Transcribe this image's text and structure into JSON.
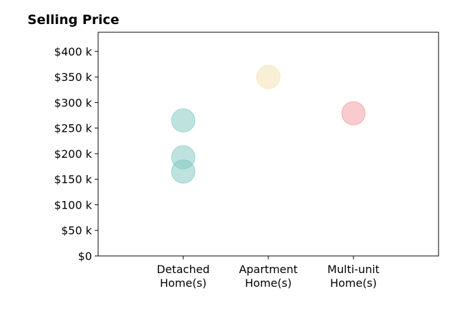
{
  "chart_data": {
    "type": "scatter",
    "title": "Selling Price",
    "xlabel": "",
    "ylabel": "",
    "categories": [
      [
        "Detached",
        "Home(s)"
      ],
      [
        "Apartment",
        "Home(s)"
      ],
      [
        "Multi-unit",
        "Home(s)"
      ]
    ],
    "y_ticks": [
      {
        "value": 0,
        "label": "$0"
      },
      {
        "value": 50000,
        "label": "$50 k"
      },
      {
        "value": 100000,
        "label": "$100 k"
      },
      {
        "value": 150000,
        "label": "$150 k"
      },
      {
        "value": 200000,
        "label": "$200 k"
      },
      {
        "value": 250000,
        "label": "$250 k"
      },
      {
        "value": 300000,
        "label": "$300 k"
      },
      {
        "value": 350000,
        "label": "$350 k"
      },
      {
        "value": 400000,
        "label": "$400 k"
      }
    ],
    "xlim": [
      0,
      4
    ],
    "ylim": [
      0,
      437500
    ],
    "grid": false,
    "points": [
      {
        "category": "Detached",
        "x": 1,
        "y": 265000,
        "color": "#7ec8bf"
      },
      {
        "category": "Detached",
        "x": 1,
        "y": 193000,
        "color": "#7ec8bf"
      },
      {
        "category": "Detached",
        "x": 1,
        "y": 165000,
        "color": "#7ec8bf"
      },
      {
        "category": "Apartment",
        "x": 2,
        "y": 350000,
        "color": "#f3dfad"
      },
      {
        "category": "Multi-unit",
        "x": 3,
        "y": 279000,
        "color": "#f4979d"
      }
    ]
  }
}
